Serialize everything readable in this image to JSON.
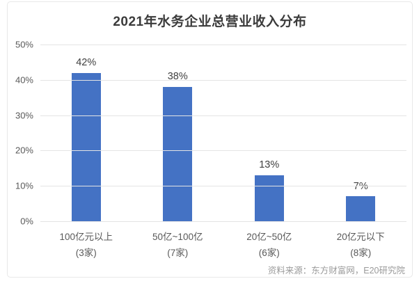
{
  "chart_data": {
    "type": "bar",
    "title": "2021年水务企业总营业收入分布",
    "categories": [
      "100亿元以上",
      "50亿~100亿",
      "20亿~50亿",
      "20亿元以下"
    ],
    "category_counts": [
      "(3家)",
      "(7家)",
      "(6家)",
      "(8家)"
    ],
    "values": [
      42,
      38,
      13,
      7
    ],
    "value_labels": [
      "42%",
      "38%",
      "13%",
      "7%"
    ],
    "xlabel": "",
    "ylabel": "",
    "ylim": [
      0,
      50
    ],
    "yticks": [
      50,
      40,
      30,
      20,
      10,
      0
    ],
    "ytick_labels": [
      "50%",
      "40%",
      "30%",
      "20%",
      "10%",
      "0%"
    ],
    "grid": true,
    "legend": "none",
    "bar_color": "#4472c4",
    "gridline_color": "#e4e4e4"
  },
  "source": "资料来源：东方财富网，E20研究院"
}
